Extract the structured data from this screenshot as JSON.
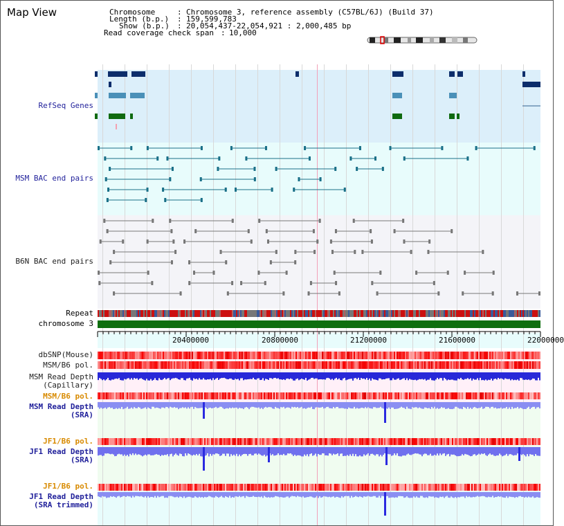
{
  "title": "Map View",
  "info": {
    "chromosome_label": "Chromosome",
    "chromosome_value": "Chromosome 3, reference assembly (C57BL/6J) (Build 37)",
    "length_label": "Length (b.p.)",
    "length_value": "159,599,783",
    "show_label": "Show (b.p.)",
    "show_value": "20,054,437-22,054,921 : 2,000,485 bp",
    "span_label": "Read coverage check span",
    "span_value": "10,000"
  },
  "tracks": {
    "refseq": "RefSeq Genes",
    "msm_bac": "MSM BAC end pairs",
    "b6n_bac": "B6N BAC end pairs",
    "repeat": "Repeat",
    "chromosome": "chromosome 3",
    "dbsnp": "dbSNP(Mouse)",
    "msm_pol": "MSM/B6 pol.",
    "msm_depth_cap_1": "MSM Read Depth",
    "msm_depth_cap_2": "(Capillary)",
    "msm_pol_2": "MSM/B6 pol.",
    "msm_depth_sra_1": "MSM Read Depth",
    "msm_depth_sra_2": "(SRA)",
    "jf1_pol": "JF1/B6 pol.",
    "jf1_depth_sra_1": "JF1 Read Depth",
    "jf1_depth_sra_2": "(SRA)",
    "jf1_pol_2": "JF1/B6 pol.",
    "jf1_depth_tr_1": "JF1 Read Depth",
    "jf1_depth_tr_2": "(SRA trimmed)"
  },
  "axis_ticks": [
    "20400000",
    "20800000",
    "21200000",
    "21600000",
    "22000000"
  ],
  "colors": {
    "refseq_band": "#dceffa",
    "msm_band": "#e8fcfc",
    "b6n_band": "#f4f4f8",
    "chromosome_bar": "#0f6e0f",
    "navy_label": "#1f1f9a",
    "orange_label": "#d88a00"
  }
}
